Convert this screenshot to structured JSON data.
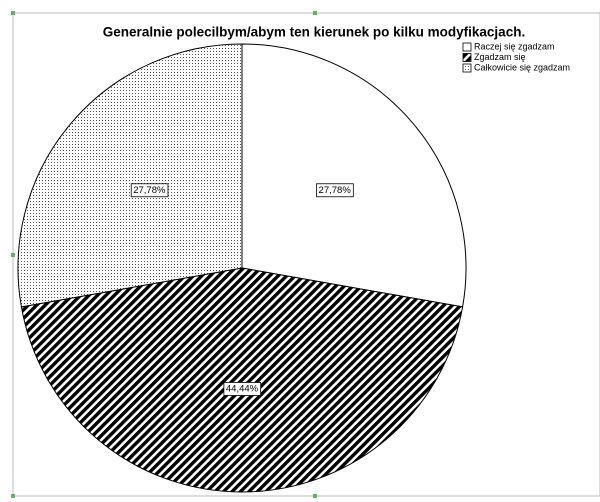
{
  "chart_data": {
    "type": "pie",
    "title": "Generalnie polecilbym/abym ten kierunek po kilku modyfikacjach.",
    "categories": [
      "Raczej się zgadzam",
      "Zgadzam się",
      "Całkowicie się zgadzam"
    ],
    "values": [
      27.78,
      44.44,
      27.78
    ],
    "value_labels": [
      "27,78%",
      "44,44%",
      "27,78%"
    ],
    "legend": "top-right"
  }
}
